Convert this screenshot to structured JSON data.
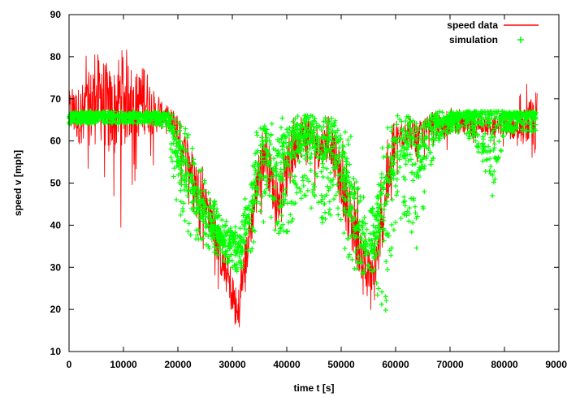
{
  "chart_data": {
    "type": "scatter",
    "title": "",
    "xlabel": "time t [s]",
    "ylabel": "speed v [mph]",
    "xlim": [
      0,
      90000
    ],
    "ylim": [
      10,
      90
    ],
    "x_ticks": [
      "0",
      "10000",
      "20000",
      "30000",
      "40000",
      "50000",
      "60000",
      "70000",
      "80000",
      "90000"
    ],
    "y_ticks": [
      "10",
      "20",
      "30",
      "40",
      "50",
      "60",
      "70",
      "80",
      "90"
    ],
    "grid": false,
    "legend_position": "top-right",
    "series": [
      {
        "name": "speed data",
        "style": "line",
        "color": "#ff0000",
        "x": [
          0,
          2000,
          4000,
          6000,
          8000,
          10000,
          12000,
          14000,
          16000,
          18000,
          20000,
          22000,
          24000,
          26000,
          28000,
          30000,
          31000,
          32000,
          34000,
          36000,
          38000,
          40000,
          42000,
          44000,
          46000,
          48000,
          50000,
          52000,
          54000,
          56000,
          58000,
          60000,
          62000,
          64000,
          66000,
          68000,
          70000,
          72000,
          74000,
          76000,
          78000,
          80000,
          82000,
          84000,
          86000
        ],
        "y": [
          67,
          66,
          68,
          70,
          66,
          72,
          68,
          70,
          66,
          66,
          62,
          55,
          48,
          42,
          32,
          24,
          18,
          28,
          45,
          58,
          46,
          52,
          60,
          62,
          58,
          60,
          50,
          40,
          32,
          26,
          45,
          60,
          62,
          60,
          64,
          63,
          64,
          64,
          63,
          64,
          63,
          64,
          63,
          64,
          64
        ],
        "range_min": [
          58,
          52,
          45,
          40,
          38,
          32,
          50,
          44,
          55,
          60,
          50,
          42,
          36,
          30,
          22,
          15,
          11,
          20,
          35,
          45,
          38,
          40,
          48,
          52,
          45,
          48,
          38,
          28,
          22,
          18,
          35,
          50,
          55,
          52,
          58,
          57,
          58,
          58,
          57,
          58,
          57,
          58,
          57,
          58,
          42
        ],
        "range_max": [
          78,
          80,
          82,
          82,
          80,
          82,
          82,
          78,
          72,
          70,
          68,
          62,
          58,
          50,
          42,
          38,
          32,
          40,
          58,
          68,
          62,
          66,
          68,
          68,
          66,
          67,
          64,
          58,
          45,
          40,
          62,
          66,
          66,
          67,
          67,
          68,
          68,
          68,
          68,
          68,
          68,
          68,
          69,
          75,
          76
        ]
      },
      {
        "name": "simulation",
        "style": "points",
        "color": "#00ff00",
        "x": [
          0,
          2000,
          4000,
          6000,
          8000,
          10000,
          12000,
          14000,
          16000,
          18000,
          20000,
          22000,
          24000,
          26000,
          28000,
          30000,
          31000,
          32000,
          34000,
          36000,
          38000,
          40000,
          42000,
          44000,
          46000,
          48000,
          50000,
          52000,
          54000,
          56000,
          58000,
          60000,
          62000,
          64000,
          66000,
          68000,
          70000,
          72000,
          74000,
          76000,
          78000,
          80000,
          82000,
          84000,
          86000
        ],
        "y": [
          66,
          66,
          66,
          66,
          66,
          66,
          66,
          66,
          66,
          66,
          58,
          50,
          45,
          40,
          37,
          36,
          35,
          36,
          50,
          60,
          55,
          58,
          62,
          63,
          60,
          62,
          55,
          45,
          38,
          35,
          50,
          58,
          60,
          55,
          64,
          65,
          65,
          66,
          66,
          66,
          66,
          66,
          66,
          66,
          66
        ],
        "range_min": [
          64,
          64,
          64,
          64,
          64,
          64,
          64,
          64,
          64,
          63,
          42,
          38,
          36,
          34,
          32,
          30,
          28,
          30,
          35,
          40,
          38,
          38,
          42,
          45,
          40,
          42,
          36,
          30,
          28,
          26,
          18,
          38,
          42,
          30,
          52,
          60,
          62,
          62,
          60,
          55,
          46,
          62,
          62,
          62,
          62
        ],
        "range_max": [
          67,
          67,
          67,
          67,
          67,
          67,
          67,
          67,
          67,
          67,
          66,
          62,
          55,
          48,
          42,
          40,
          40,
          44,
          62,
          66,
          66,
          66,
          66,
          66,
          66,
          66,
          66,
          62,
          50,
          44,
          64,
          66,
          66,
          66,
          66,
          67,
          67,
          67,
          67,
          67,
          67,
          67,
          67,
          67,
          67
        ]
      }
    ]
  }
}
